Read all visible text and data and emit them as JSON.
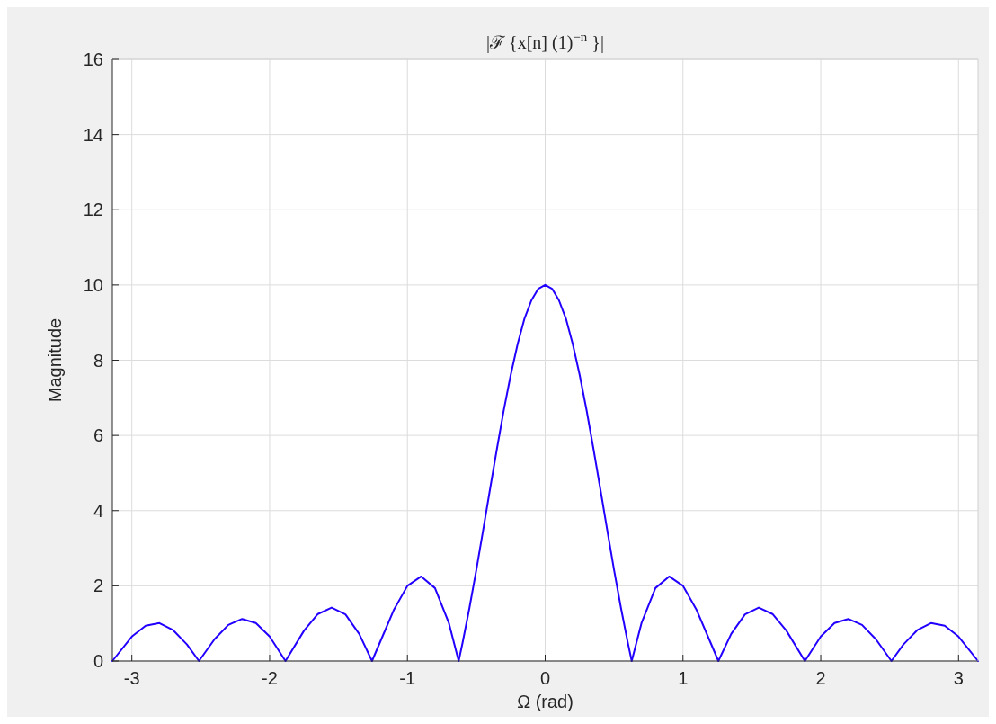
{
  "chart_data": {
    "type": "line",
    "title": "|ℱ {x[n] (1)$^{−n}$ }|",
    "xlabel": "Ω (rad)",
    "ylabel": "Magnitude",
    "x": [
      -3.1416,
      -3.0,
      -2.9,
      -2.8,
      -2.7,
      -2.6,
      -2.513,
      -2.4,
      -2.3,
      -2.2,
      -2.1,
      -2.0,
      -1.885,
      -1.75,
      -1.65,
      -1.55,
      -1.45,
      -1.35,
      -1.257,
      -1.2,
      -1.1,
      -1.0,
      -0.9,
      -0.8,
      -0.7,
      -0.628,
      -0.6,
      -0.55,
      -0.5,
      -0.45,
      -0.4,
      -0.35,
      -0.3,
      -0.25,
      -0.2,
      -0.15,
      -0.1,
      -0.05,
      0,
      0.05,
      0.1,
      0.15,
      0.2,
      0.25,
      0.3,
      0.35,
      0.4,
      0.45,
      0.5,
      0.55,
      0.6,
      0.628,
      0.7,
      0.8,
      0.9,
      1.0,
      1.1,
      1.2,
      1.257,
      1.35,
      1.45,
      1.55,
      1.65,
      1.75,
      1.885,
      2.0,
      2.1,
      2.2,
      2.3,
      2.4,
      2.513,
      2.6,
      2.7,
      2.8,
      2.9,
      3.0,
      3.1416
    ],
    "series": [
      {
        "color": "#2200ff",
        "values": [
          0,
          0.65,
          0.94,
          1.01,
          0.82,
          0.44,
          0,
          0.58,
          0.96,
          1.12,
          1.01,
          0.65,
          0,
          0.81,
          1.25,
          1.42,
          1.24,
          0.72,
          0,
          0.49,
          1.35,
          2.0,
          2.25,
          1.94,
          1.02,
          0,
          0.48,
          1.41,
          2.42,
          3.49,
          4.58,
          5.65,
          6.68,
          7.61,
          8.43,
          9.11,
          9.59,
          9.9,
          10,
          9.9,
          9.59,
          9.11,
          8.43,
          7.61,
          6.68,
          5.65,
          4.58,
          3.49,
          2.42,
          1.41,
          0.48,
          0,
          1.02,
          1.94,
          2.25,
          2.0,
          1.35,
          0.49,
          0,
          0.72,
          1.24,
          1.42,
          1.25,
          0.81,
          0,
          0.65,
          1.01,
          1.12,
          0.96,
          0.58,
          0,
          0.44,
          0.82,
          1.01,
          0.94,
          0.65,
          0
        ]
      }
    ],
    "xlim": [
      -3.1416,
      3.1416
    ],
    "xticks": [
      -3,
      -2,
      -1,
      0,
      1,
      2,
      3
    ],
    "ylim": [
      0,
      16
    ],
    "yticks": [
      0,
      2,
      4,
      6,
      8,
      10,
      12,
      14,
      16
    ],
    "grid": true,
    "marker": "none",
    "line_style": "solid"
  }
}
